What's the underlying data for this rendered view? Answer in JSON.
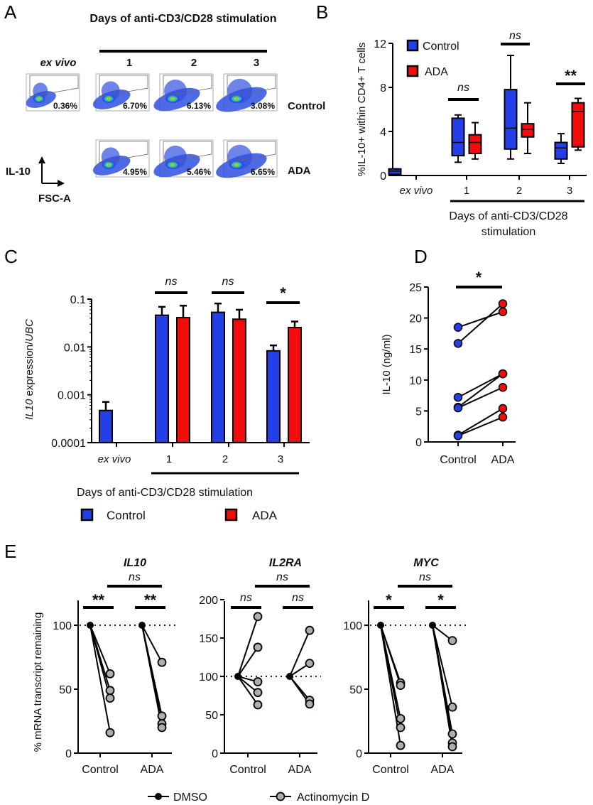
{
  "colors": {
    "control": "#2340e8",
    "ada": "#f20c0c",
    "dmso": "#000000",
    "actd": "#a8b0ac"
  },
  "panel_a": {
    "label": "A",
    "title": "Days of anti-CD3/CD28 stimulation",
    "columns": [
      "ex vivo",
      "1",
      "2",
      "3"
    ],
    "rows": [
      "Control",
      "ADA"
    ],
    "y_axis": "IL-10",
    "x_axis": "FSC-A",
    "percentages": {
      "Control": [
        "0.36%",
        "6.70%",
        "6.13%",
        "3.08%"
      ],
      "ADA": [
        null,
        "4.95%",
        "5.46%",
        "6.65%"
      ]
    }
  },
  "chart_data": [
    {
      "id": "B",
      "label": "B",
      "type": "box",
      "ylabel": "%IL-10+ within CD4+ T cells",
      "xlabel_line1": "Days of anti-CD3/CD28",
      "xlabel_line2": "stimulation",
      "ylim": [
        0,
        12
      ],
      "yticks": [
        "0",
        "4",
        "8",
        "12"
      ],
      "categories": [
        "ex vivo",
        "1",
        "2",
        "3"
      ],
      "legend": [
        "Control",
        "ADA"
      ],
      "series": [
        {
          "name": "Control",
          "boxes": [
            {
              "min": 0.1,
              "q1": 0.1,
              "median": 0.4,
              "q3": 0.6,
              "max": 0.6
            },
            {
              "min": 1.2,
              "q1": 1.8,
              "median": 3.0,
              "q3": 5.2,
              "max": 5.5
            },
            {
              "min": 1.5,
              "q1": 2.4,
              "median": 4.3,
              "q3": 7.8,
              "max": 10.9
            },
            {
              "min": 1.1,
              "q1": 1.5,
              "median": 2.5,
              "q3": 3.0,
              "max": 3.8
            }
          ]
        },
        {
          "name": "ADA",
          "boxes": [
            null,
            {
              "min": 1.5,
              "q1": 2.0,
              "median": 3.0,
              "q3": 3.7,
              "max": 4.8
            },
            {
              "min": 2.0,
              "q1": 3.5,
              "median": 4.2,
              "q3": 4.7,
              "max": 6.6
            },
            {
              "min": 2.3,
              "q1": 2.6,
              "median": 5.8,
              "q3": 6.6,
              "max": 7.0
            }
          ]
        }
      ],
      "significance": [
        null,
        "ns",
        "ns",
        "**"
      ]
    },
    {
      "id": "C",
      "label": "C",
      "type": "bar",
      "yscale": "log",
      "ylabel_gene": "IL10",
      "ylabel_mid": " expression/",
      "ylabel_ref": "UBC",
      "xlabel": "Days of anti-CD3/CD28 stimulation",
      "ylim": [
        0.0001,
        0.1
      ],
      "yticks": [
        "0.1",
        "0.01",
        "0.001",
        "0.0001"
      ],
      "categories": [
        "ex vivo",
        "1",
        "2",
        "3"
      ],
      "legend": [
        "Control",
        "ADA"
      ],
      "series": [
        {
          "name": "Control",
          "values": [
            0.00047,
            0.046,
            0.053,
            0.0083
          ],
          "errors_upper": [
            0.00071,
            0.069,
            0.081,
            0.0108
          ]
        },
        {
          "name": "ADA",
          "values": [
            null,
            0.041,
            0.038,
            0.0255
          ],
          "errors_upper": [
            null,
            0.073,
            0.06,
            0.034
          ]
        }
      ],
      "significance": [
        null,
        "ns",
        "ns",
        "*"
      ]
    },
    {
      "id": "D",
      "label": "D",
      "type": "paired-scatter",
      "ylabel": "IL-10 (ng/ml)",
      "ylim": [
        0,
        25
      ],
      "yticks": [
        "0",
        "5",
        "10",
        "15",
        "20",
        "25"
      ],
      "categories": [
        "Control",
        "ADA"
      ],
      "pairs": [
        [
          18.5,
          21.0
        ],
        [
          15.9,
          22.3
        ],
        [
          7.2,
          11.0
        ],
        [
          5.6,
          11.0
        ],
        [
          5.5,
          8.8
        ],
        [
          1.1,
          5.4
        ],
        [
          1.0,
          4.0
        ]
      ],
      "significance": "*"
    },
    {
      "id": "E",
      "label": "E",
      "type": "paired-scatter",
      "ylabel": "% mRNA transcript remaining",
      "legend": [
        "DMSO",
        "Actinomycin D"
      ],
      "panels": [
        {
          "title": "IL10",
          "ylim": [
            0,
            120
          ],
          "yticks": [
            "0",
            "50",
            "100"
          ],
          "categories": [
            "Control",
            "ADA"
          ],
          "reference": 100,
          "actd": {
            "Control": [
              62,
              49,
              43,
              16
            ],
            "ADA": [
              71,
              29,
              23,
              20
            ]
          },
          "significance": {
            "Control": "**",
            "ADA": "**",
            "between": "ns"
          }
        },
        {
          "title": "IL2RA",
          "ylim": [
            0,
            200
          ],
          "yticks": [
            "0",
            "50",
            "100",
            "150",
            "200"
          ],
          "categories": [
            "Control",
            "ADA"
          ],
          "reference": 100,
          "actd": {
            "Control": [
              178,
              138,
              93,
              79,
              63
            ],
            "ADA": [
              160,
              117,
              69,
              64
            ]
          },
          "significance": {
            "Control": "ns",
            "ADA": "ns",
            "between": "ns"
          }
        },
        {
          "title": "MYC",
          "ylim": [
            0,
            120
          ],
          "yticks": [
            "0",
            "50",
            "100"
          ],
          "categories": [
            "Control",
            "ADA"
          ],
          "reference": 100,
          "actd": {
            "Control": [
              55,
              53,
              27,
              20,
              6
            ],
            "ADA": [
              88,
              36,
              15,
              8,
              5
            ]
          },
          "significance": {
            "Control": "*",
            "ADA": "*",
            "between": "ns"
          }
        }
      ]
    }
  ]
}
